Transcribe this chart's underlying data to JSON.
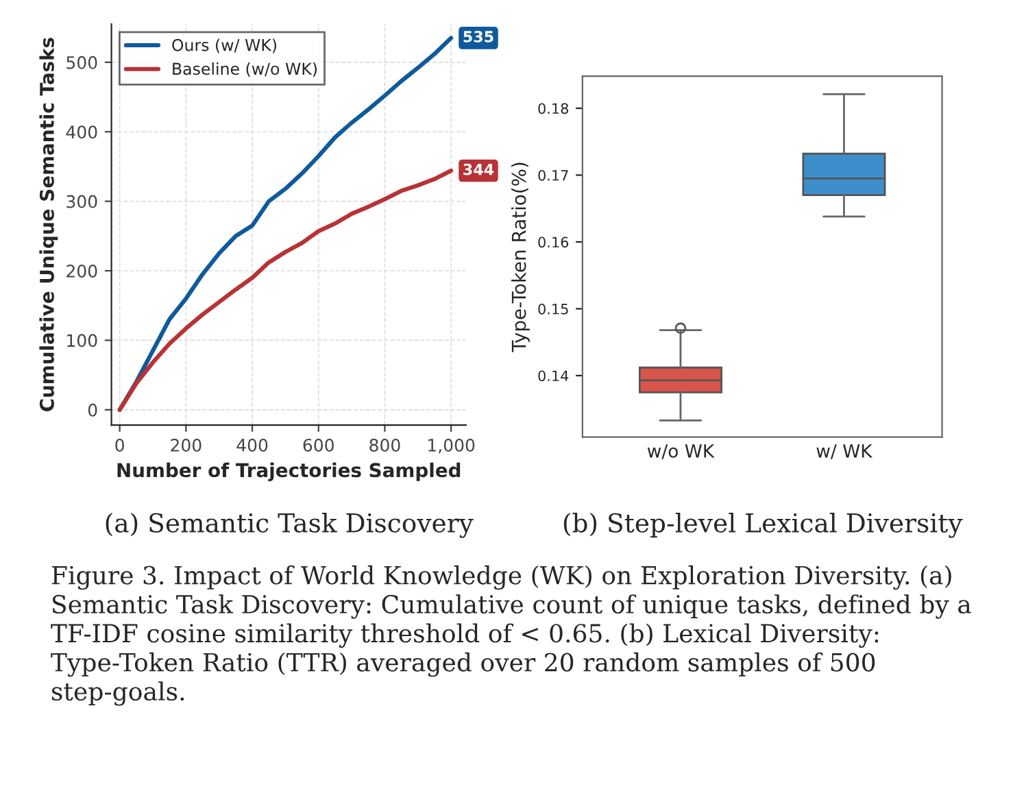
{
  "chart_data": [
    {
      "type": "line",
      "xlabel": "Number of Trajectories Sampled",
      "ylabel": "Cumulative Unique Semantic Tasks",
      "x": [
        0,
        50,
        100,
        150,
        200,
        250,
        300,
        350,
        400,
        450,
        500,
        550,
        600,
        650,
        700,
        750,
        800,
        850,
        900,
        950,
        1000
      ],
      "series": [
        {
          "name": "Ours (w/ WK)",
          "color": "#0f5a9c",
          "values": [
            0,
            40,
            85,
            130,
            160,
            195,
            225,
            250,
            265,
            300,
            318,
            340,
            365,
            392,
            413,
            432,
            452,
            473,
            492,
            512,
            535
          ],
          "value_labels": [
            null,
            null,
            null,
            null,
            null,
            null,
            null,
            null,
            null,
            null,
            null,
            null,
            null,
            null,
            null,
            null,
            null,
            null,
            null,
            null,
            "535"
          ]
        },
        {
          "name": "Baseline (w/o WK)",
          "color": "#b83236",
          "values": [
            0,
            38,
            68,
            95,
            117,
            137,
            155,
            173,
            190,
            212,
            227,
            240,
            257,
            268,
            282,
            292,
            303,
            315,
            323,
            332,
            344
          ],
          "value_labels": [
            null,
            null,
            null,
            null,
            null,
            null,
            null,
            null,
            null,
            null,
            null,
            null,
            null,
            null,
            null,
            null,
            null,
            null,
            null,
            null,
            "344"
          ]
        }
      ],
      "xlim": [
        -25,
        1045
      ],
      "ylim": [
        -22,
        555
      ],
      "xticks": [
        0,
        200,
        400,
        600,
        800,
        {
          "value": 1000,
          "label": "1,000"
        }
      ],
      "yticks": [
        0,
        100,
        200,
        300,
        400,
        500
      ],
      "grid": true,
      "legend": "top left",
      "annotations": [
        "(a) Semantic Task Discovery",
        "Figure 3. Impact of World Knowledge (WK) on Exploration Diversity. (a) Semantic Task Discovery: Cumulative count of unique tasks, defined by a TF-IDF cosine similarity threshold of < 0.65. (b) Lexical Diversity: Type-Token Ratio (TTR) averaged over 20 random samples of 500 step-goals."
      ]
    },
    {
      "type": "box",
      "ylabel": "Type-Token Ratio(%)",
      "categories": [
        "w/o WK",
        "w/ WK"
      ],
      "colors": [
        "#d9544a",
        "#3d8ecb"
      ],
      "boxes": [
        {
          "low": 0.1333,
          "q1": 0.1375,
          "median": 0.1393,
          "q3": 0.1412,
          "high": 0.1468,
          "outliers": [
            0.1471
          ]
        },
        {
          "low": 0.1638,
          "q1": 0.167,
          "median": 0.1695,
          "q3": 0.1732,
          "high": 0.1821
        }
      ],
      "ylim": [
        0.1308,
        0.1848
      ],
      "yticks": [
        0.14,
        0.15,
        0.16,
        0.17,
        0.18
      ],
      "annotations": [
        "(b) Step-level Lexical Diversity"
      ]
    }
  ]
}
